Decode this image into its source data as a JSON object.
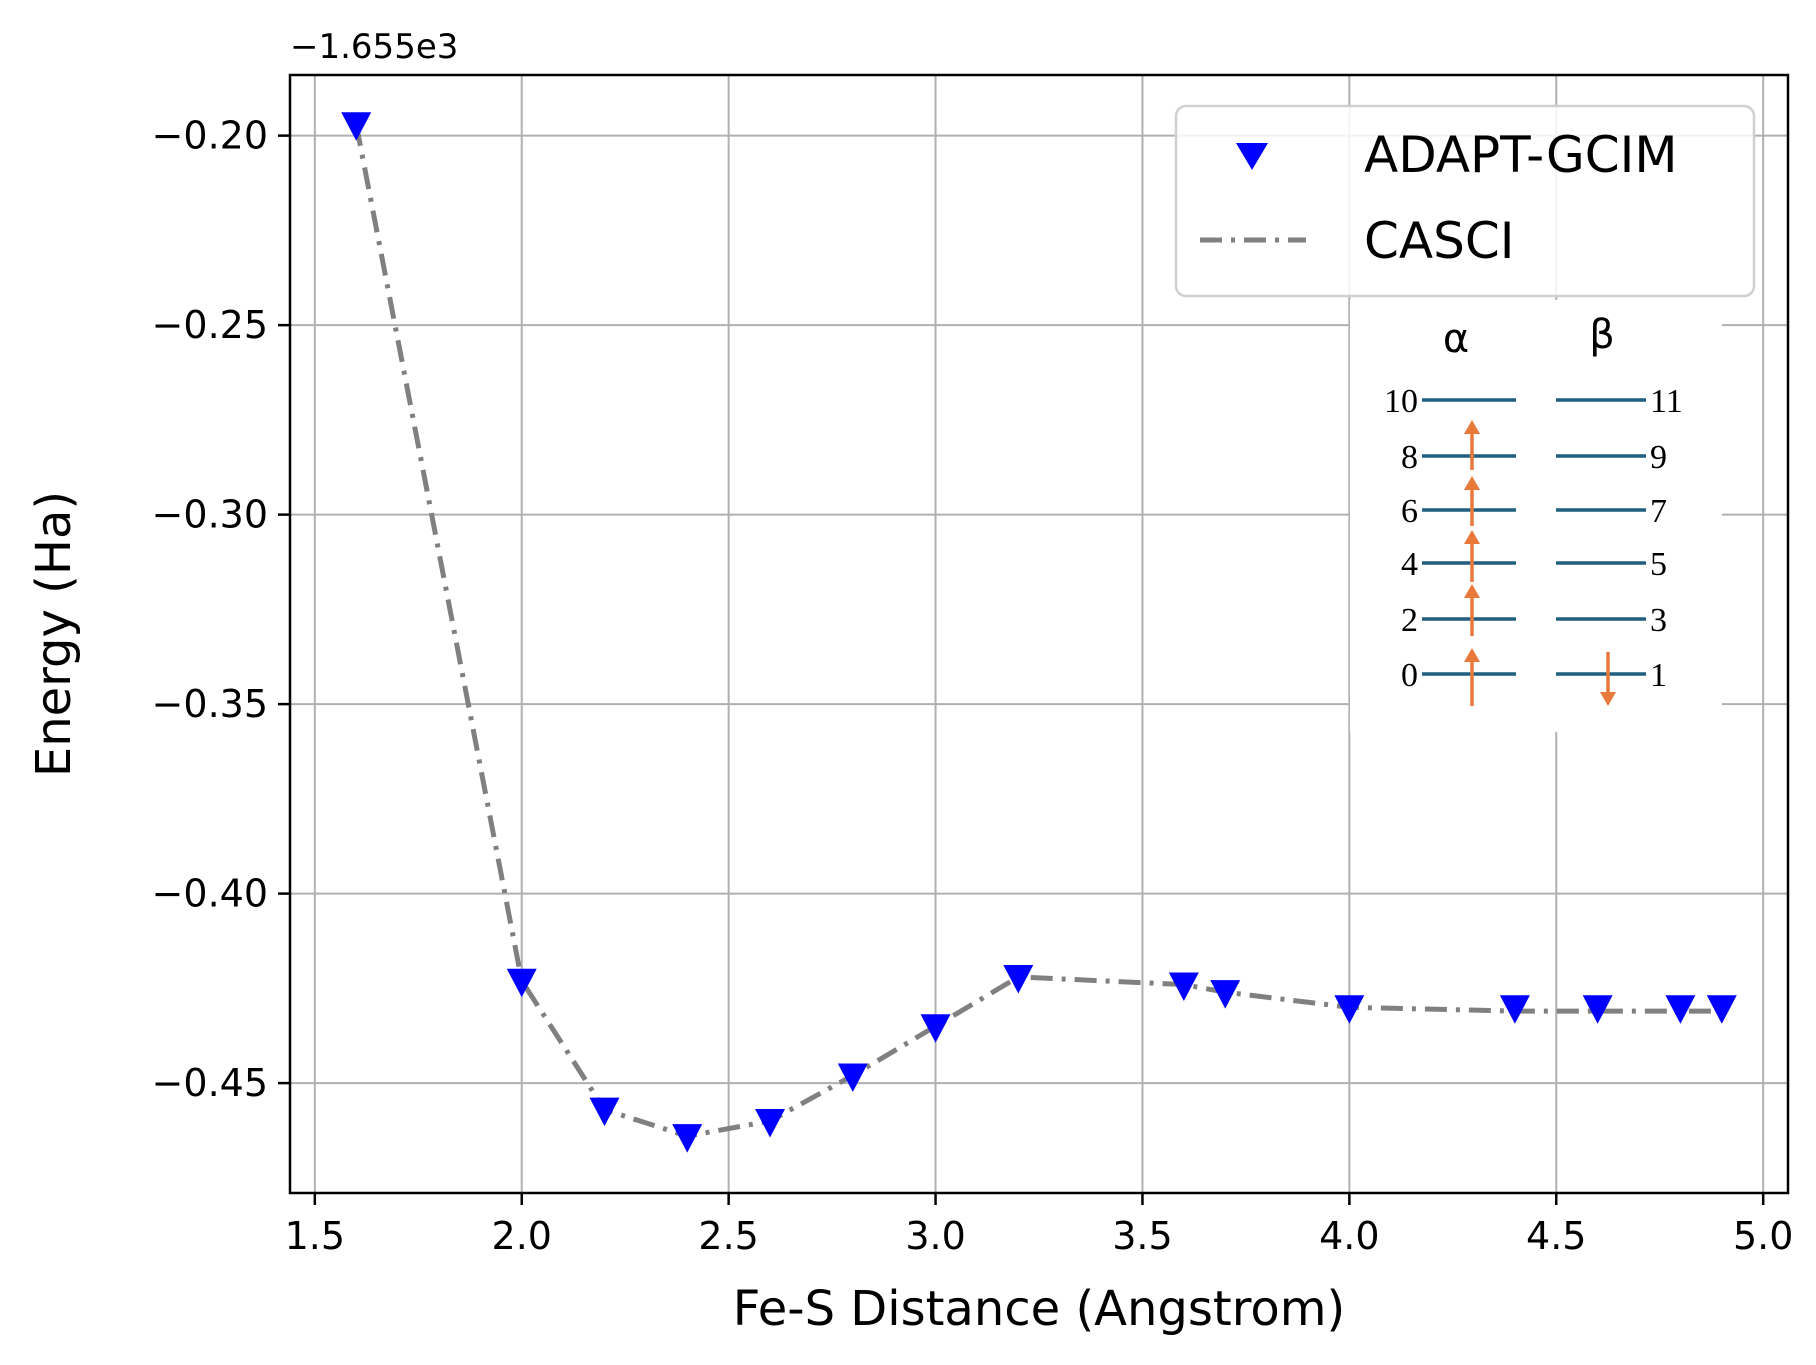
{
  "chart_data": {
    "type": "line",
    "xlabel": "Fe-S Distance (Angstrom)",
    "ylabel": "Energy (Ha)",
    "offset_text": "−1.655e3",
    "xlim": [
      1.44,
      5.06
    ],
    "ylim": [
      -0.479,
      -0.184
    ],
    "xticks": [
      1.5,
      2.0,
      2.5,
      3.0,
      3.5,
      4.0,
      4.5,
      5.0
    ],
    "xtick_labels": [
      "1.5",
      "2.0",
      "2.5",
      "3.0",
      "3.5",
      "4.0",
      "4.5",
      "5.0"
    ],
    "yticks": [
      -0.45,
      -0.4,
      -0.35,
      -0.3,
      -0.25,
      -0.2
    ],
    "ytick_labels": [
      "−0.45",
      "−0.40",
      "−0.35",
      "−0.30",
      "−0.25",
      "−0.20"
    ],
    "grid": true,
    "legend_position": "top-right",
    "series": [
      {
        "name": "ADAPT-GCIM",
        "style": "markers",
        "marker": "triangle-down",
        "color": "#0000ff",
        "x": [
          1.6,
          2.0,
          2.2,
          2.4,
          2.6,
          2.8,
          3.0,
          3.2,
          3.6,
          3.7,
          4.0,
          4.4,
          4.6,
          4.8,
          4.9
        ],
        "y": [
          -0.197,
          -0.423,
          -0.457,
          -0.464,
          -0.46,
          -0.448,
          -0.435,
          -0.422,
          -0.424,
          -0.426,
          -0.43,
          -0.43,
          -0.43,
          -0.43,
          -0.43
        ]
      },
      {
        "name": "CASCI",
        "style": "dashdot",
        "color": "#808080",
        "x": [
          1.6,
          2.0,
          2.2,
          2.4,
          2.6,
          2.8,
          3.0,
          3.2,
          3.6,
          3.7,
          4.0,
          4.4,
          4.6,
          4.8,
          4.9
        ],
        "y": [
          -0.197,
          -0.423,
          -0.457,
          -0.464,
          -0.46,
          -0.448,
          -0.435,
          -0.422,
          -0.424,
          -0.426,
          -0.43,
          -0.431,
          -0.431,
          -0.431,
          -0.431
        ]
      }
    ]
  },
  "inset": {
    "alpha_label": "α",
    "beta_label": "β",
    "line_color": "#1f5f7f",
    "arrow_color": "#e8793a",
    "alpha_orbitals": [
      "10",
      "8",
      "6",
      "4",
      "2",
      "0"
    ],
    "beta_orbitals": [
      "11",
      "9",
      "7",
      "5",
      "3",
      "1"
    ],
    "alpha_arrows": [
      "up",
      "up",
      "up",
      "up",
      "up"
    ],
    "beta_arrows": [
      "down"
    ]
  }
}
